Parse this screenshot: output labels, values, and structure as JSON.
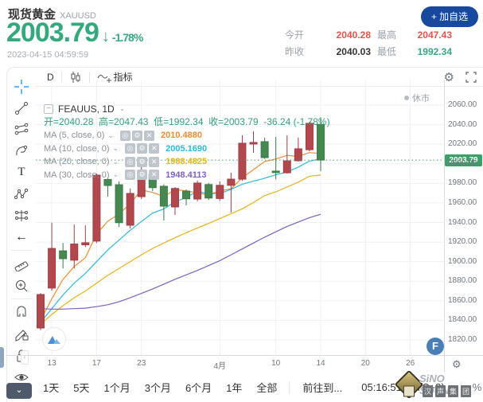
{
  "header": {
    "title": "现货黄金",
    "symbol": "XAUUSD",
    "price": "2003.79",
    "arrow": "↓",
    "change_pct": "-1.78%",
    "timestamp": "2023-04-15 04:59:59",
    "add_watchlist_label": "+ 加自选",
    "stats": [
      {
        "label": "今开",
        "value": "2040.28",
        "color": "#e2544d"
      },
      {
        "label": "最高",
        "value": "2047.43",
        "color": "#e2544d"
      },
      {
        "label": "昨收",
        "value": "2040.03",
        "color": "#333333"
      },
      {
        "label": "最低",
        "value": "1992.34",
        "color": "#36a87e"
      }
    ]
  },
  "chart_toolbar": {
    "interval": "D",
    "indicator_label": "指标"
  },
  "legend": {
    "collapse_glyph": "−",
    "series_title": "FEAUUS, 1D",
    "series_chevron": "⌄",
    "ohlc_line": "开=2040.28  高=2047.43  低=1992.34  收=2003.79  -36.24 (-1.78%)",
    "ma_button_glyphs": [
      "◎",
      "⚙",
      "✕"
    ],
    "ma_rows": [
      {
        "label": "MA (5, close, 0)",
        "value": "2010.4880",
        "color": "#f08c2e"
      },
      {
        "label": "MA (10, close, 0)",
        "value": "2005.1690",
        "color": "#2fb6d9"
      },
      {
        "label": "MA (20, close, 0)",
        "value": "1988.4825",
        "color": "#e9b21a"
      },
      {
        "label": "MA (30, close, 0)",
        "value": "1948.4113",
        "color": "#7e60c0"
      }
    ]
  },
  "market_status": "休市",
  "price_tag": "2003.79",
  "fab_label": "F",
  "bottom_bar": {
    "ranges": [
      "1天",
      "5天",
      "1个月",
      "3个月",
      "6个月",
      "1年",
      "全部"
    ],
    "goto_label": "前往到...",
    "clock": "05:16:51 (UTC+8)",
    "percent_label": "%"
  },
  "watermark": {
    "line1": "SiNO SOUND",
    "chars": [
      "汉",
      "声",
      "集",
      "团"
    ]
  },
  "chart_data": {
    "type": "candlestick",
    "title": "FEAUUS, 1D",
    "color_convention": "chinese: red = up day, green = down day",
    "current_price": 2003.79,
    "y_axis": {
      "min": 1820,
      "max": 2060,
      "step": 20,
      "grid": true
    },
    "x_labels": [
      {
        "text": "13",
        "slot": 1
      },
      {
        "text": "17",
        "slot": 5
      },
      {
        "text": "23",
        "slot": 9
      },
      {
        "text": "4月",
        "slot": 16
      },
      {
        "text": "10",
        "slot": 21
      },
      {
        "text": "14",
        "slot": 25
      },
      {
        "text": "20",
        "slot": 29
      },
      {
        "text": "26",
        "slot": 33
      }
    ],
    "candles": [
      {
        "date": "03-10",
        "o": 1832.2,
        "h": 1867.8,
        "l": 1830.0,
        "c": 1866.4
      },
      {
        "date": "03-13",
        "o": 1873.0,
        "h": 1939.8,
        "l": 1870.2,
        "c": 1913.5
      },
      {
        "date": "03-14",
        "o": 1911.0,
        "h": 1919.0,
        "l": 1893.0,
        "c": 1903.0
      },
      {
        "date": "03-15",
        "o": 1901.5,
        "h": 1938.0,
        "l": 1893.2,
        "c": 1918.0
      },
      {
        "date": "03-16",
        "o": 1917.2,
        "h": 1937.0,
        "l": 1915.0,
        "c": 1919.3
      },
      {
        "date": "03-17",
        "o": 1921.0,
        "h": 1990.0,
        "l": 1919.0,
        "c": 1988.4
      },
      {
        "date": "03-20",
        "o": 1984.0,
        "h": 1985.5,
        "l": 1966.4,
        "c": 1977.8
      },
      {
        "date": "03-21",
        "o": 1978.6,
        "h": 1982.0,
        "l": 1935.5,
        "c": 1939.8
      },
      {
        "date": "03-22",
        "o": 1937.2,
        "h": 1974.8,
        "l": 1933.9,
        "c": 1969.7
      },
      {
        "date": "03-23",
        "o": 1966.4,
        "h": 1996.5,
        "l": 1964.0,
        "c": 1990.8
      },
      {
        "date": "03-24",
        "o": 1989.2,
        "h": 1993.3,
        "l": 1972.1,
        "c": 1975.6
      },
      {
        "date": "03-27",
        "o": 1977.0,
        "h": 1979.0,
        "l": 1942.0,
        "c": 1956.7
      },
      {
        "date": "03-28",
        "o": 1955.9,
        "h": 1976.2,
        "l": 1947.7,
        "c": 1974.8
      },
      {
        "date": "03-29",
        "o": 1972.1,
        "h": 1973.8,
        "l": 1957.5,
        "c": 1964.2
      },
      {
        "date": "03-30",
        "o": 1964.0,
        "h": 1982.7,
        "l": 1961.6,
        "c": 1980.3
      },
      {
        "date": "03-31",
        "o": 1978.8,
        "h": 1980.5,
        "l": 1963.0,
        "c": 1965.0
      },
      {
        "date": "04-03",
        "o": 1964.5,
        "h": 1982.0,
        "l": 1962.0,
        "c": 1978.0
      },
      {
        "date": "04-04",
        "o": 1978.0,
        "h": 1990.8,
        "l": 1950.2,
        "c": 1984.3
      },
      {
        "date": "04-05",
        "o": 1984.3,
        "h": 2029.1,
        "l": 1982.7,
        "c": 2021.0
      },
      {
        "date": "04-06",
        "o": 2020.2,
        "h": 2033.2,
        "l": 2011.2,
        "c": 2021.8
      },
      {
        "date": "04-07",
        "o": 2022.6,
        "h": 2026.7,
        "l": 2005.0,
        "c": 2006.3
      },
      {
        "date": "04-10",
        "o": 1992.5,
        "h": 2027.5,
        "l": 1984.0,
        "c": 1991.0
      },
      {
        "date": "04-11",
        "o": 1990.8,
        "h": 2029.0,
        "l": 1990.0,
        "c": 2003.0
      },
      {
        "date": "04-12",
        "o": 2003.1,
        "h": 2026.7,
        "l": 2002.3,
        "c": 2015.3
      },
      {
        "date": "04-13",
        "o": 2014.4,
        "h": 2043.0,
        "l": 2012.8,
        "c": 2041.3
      },
      {
        "date": "04-14",
        "o": 2040.28,
        "h": 2047.43,
        "l": 1992.34,
        "c": 2003.79
      }
    ],
    "series": [
      {
        "name": "MA5",
        "color": "#f08c2e",
        "values": [
          1840,
          1862,
          1882,
          1895,
          1904,
          1928.4,
          1941.3,
          1948.7,
          1959,
          1973.3,
          1970.7,
          1966.5,
          1973.5,
          1972.4,
          1970.3,
          1968.2,
          1972.5,
          1974.4,
          1985.7,
          1994,
          2002.3,
          2004.9,
          2008.6,
          2007.5,
          2011.4,
          2010.5
        ]
      },
      {
        "name": "MA10",
        "color": "#2fb6d9",
        "values": [
          1838,
          1852,
          1866,
          1878,
          1888,
          1900,
          1912,
          1922,
          1932,
          1941,
          1949.6,
          1953.9,
          1961.1,
          1965.7,
          1971.8,
          1969.5,
          1969.5,
          1973.9,
          1979.1,
          1982.2,
          1985.2,
          1988.7,
          1991.5,
          1996.6,
          2002.7,
          2005.2
        ]
      },
      {
        "name": "MA20",
        "color": "#e9b21a",
        "values": [
          1836,
          1846,
          1855,
          1863,
          1870,
          1878,
          1886,
          1893,
          1900,
          1907,
          1913.5,
          1919,
          1924.5,
          1929.5,
          1934.5,
          1939,
          1944,
          1949,
          1954,
          1960.4,
          1967.4,
          1971.3,
          1976.3,
          1981.2,
          1987.3,
          1988.5
        ]
      },
      {
        "name": "MA30",
        "color": "#7e60c0",
        "values": [
          1852,
          1851.5,
          1851.5,
          1852,
          1852.5,
          1854,
          1856,
          1859,
          1863,
          1867.5,
          1872,
          1877,
          1882,
          1886.5,
          1891,
          1896,
          1901,
          1907,
          1913,
          1919,
          1925,
          1930.5,
          1936,
          1940.5,
          1945,
          1948.4
        ]
      }
    ],
    "colors": {
      "up": "#b2484e",
      "up_stroke": "#9e3f45",
      "down": "#458951",
      "down_stroke": "#3a7a46",
      "grid": "#edf1f5",
      "price_line": "#3da06c"
    }
  }
}
